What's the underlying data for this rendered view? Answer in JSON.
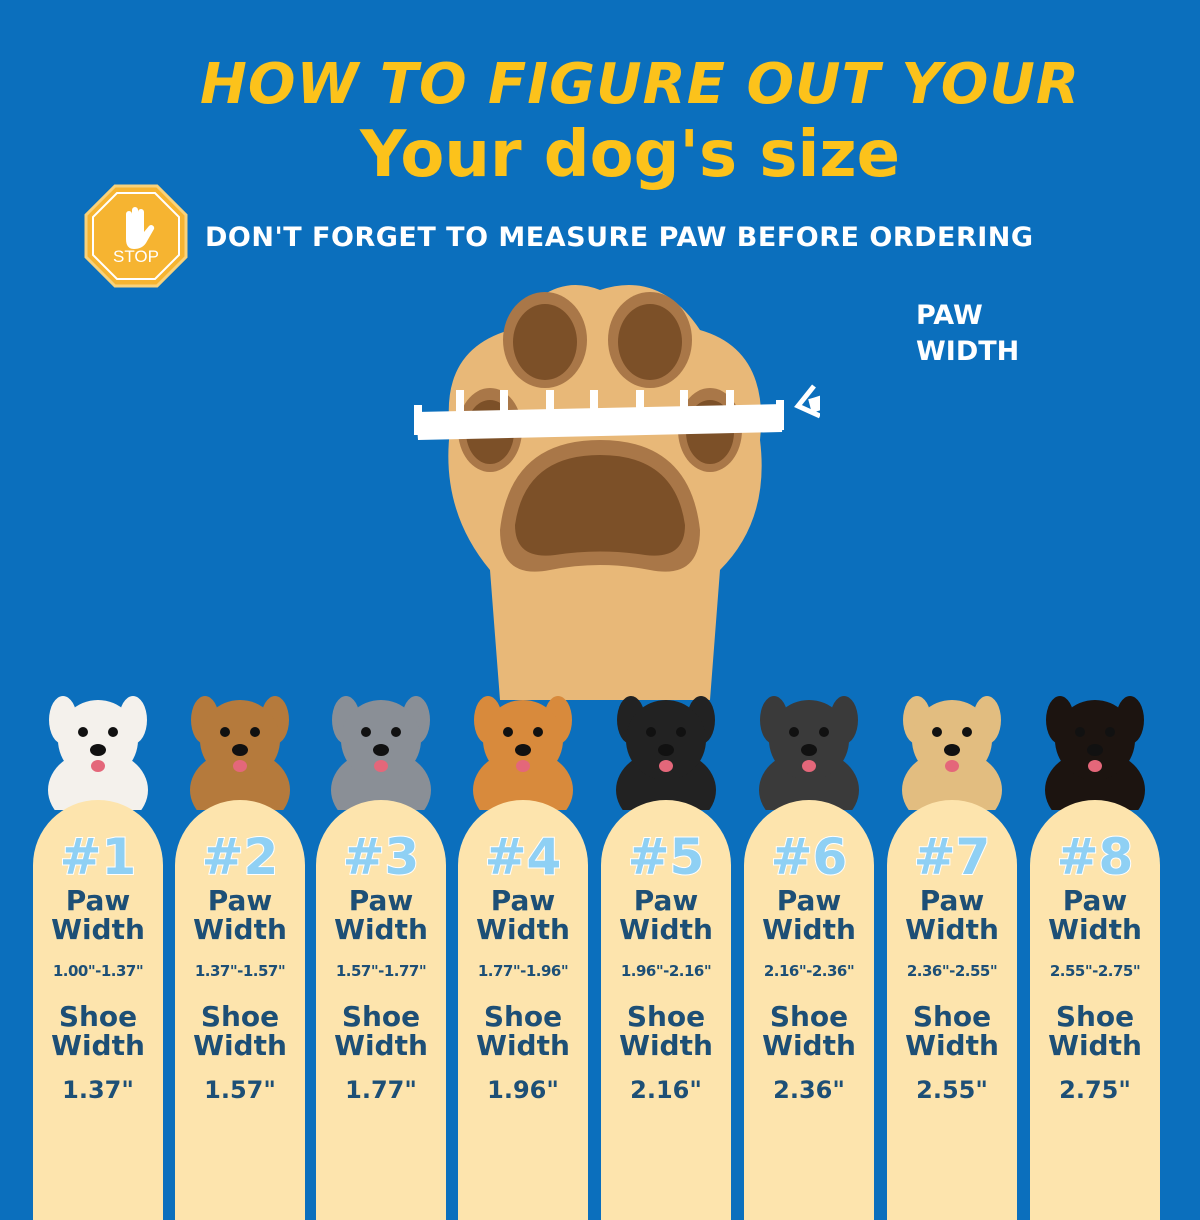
{
  "header": {
    "title_line1": "HOW TO FIGURE OUT YOUR",
    "title_line2": "Your dog's size",
    "stop_sign_text": "STOP",
    "reminder": "DON'T FORGET TO MEASURE PAW BEFORE ORDERING"
  },
  "diagram": {
    "paw_label_line1": "PAW",
    "paw_label_line2": "WIDTH"
  },
  "colors": {
    "background": "#0b6fbd",
    "title": "#fcc21b",
    "card": "#fde4ad",
    "card_text": "#1d4f76",
    "number": "#8fd0f4"
  },
  "sizes": [
    {
      "number": "#1",
      "paw_label": "Paw",
      "width_label": "Width",
      "paw_range": "1.00\"-1.37\"",
      "shoe_label": "Shoe",
      "shoe_width_label": "Width",
      "shoe_width": "1.37\""
    },
    {
      "number": "#2",
      "paw_label": "Paw",
      "width_label": "Width",
      "paw_range": "1.37\"-1.57\"",
      "shoe_label": "Shoe",
      "shoe_width_label": "Width",
      "shoe_width": "1.57\""
    },
    {
      "number": "#3",
      "paw_label": "Paw",
      "width_label": "Width",
      "paw_range": "1.57\"-1.77\"",
      "shoe_label": "Shoe",
      "shoe_width_label": "Width",
      "shoe_width": "1.77\""
    },
    {
      "number": "#4",
      "paw_label": "Paw",
      "width_label": "Width",
      "paw_range": "1.77\"-1.96\"",
      "shoe_label": "Shoe",
      "shoe_width_label": "Width",
      "shoe_width": "1.96\""
    },
    {
      "number": "#5",
      "paw_label": "Paw",
      "width_label": "Width",
      "paw_range": "1.96\"-2.16\"",
      "shoe_label": "Shoe",
      "shoe_width_label": "Width",
      "shoe_width": "2.16\""
    },
    {
      "number": "#6",
      "paw_label": "Paw",
      "width_label": "Width",
      "paw_range": "2.16\"-2.36\"",
      "shoe_label": "Shoe",
      "shoe_width_label": "Width",
      "shoe_width": "2.36\""
    },
    {
      "number": "#7",
      "paw_label": "Paw",
      "width_label": "Width",
      "paw_range": "2.36\"-2.55\"",
      "shoe_label": "Shoe",
      "shoe_width_label": "Width",
      "shoe_width": "2.55\""
    },
    {
      "number": "#8",
      "paw_label": "Paw",
      "width_label": "Width",
      "paw_range": "2.55\"-2.75\"",
      "shoe_label": "Shoe",
      "shoe_width_label": "Width",
      "shoe_width": "2.75\""
    }
  ],
  "dog_colors": [
    "#f4f1ec",
    "#b57a3c",
    "#8a8f96",
    "#d88a3c",
    "#222222",
    "#3a3a3a",
    "#e2bd80",
    "#1c1410"
  ]
}
